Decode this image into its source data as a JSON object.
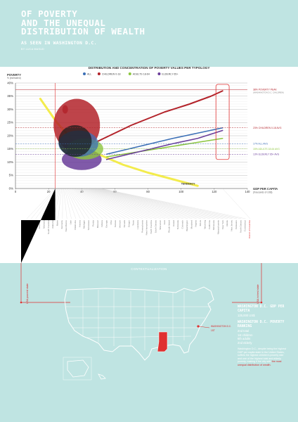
{
  "header": {
    "title": "OF POVERTY\nAND THE UNEQUAL\nDISTRIBUTION OF WEALTH",
    "subtitle": "AS SEEN IN WASHINGTON D.C.",
    "author": "BY LUCA MASUD"
  },
  "colors": {
    "band": "#bfe4e2",
    "all": "#3b6fb6",
    "children": "#b3232a",
    "adults": "#8cc63f",
    "elderly": "#6a3d9a",
    "tendency": "#f2ea3a",
    "highlight": "#e03030"
  },
  "chart_data": {
    "type": "scatter",
    "title": "DISTRIBUTION AND CONCENTRATION OF POVERTY VALUES PER TYPOLOGY",
    "ylabel": "POVERTY",
    "ylabel_sub": "% (estimated)",
    "xlabel": "GDP PER CAPITA",
    "xlabel_sub": "(thousands of US$)",
    "xlim": [
      0,
      140
    ],
    "ylim": [
      0,
      40
    ],
    "xticks": [
      0,
      20,
      40,
      60,
      80,
      100,
      120,
      140
    ],
    "yticks": [
      "0%",
      "5%",
      "10%",
      "15%",
      "20%",
      "25%",
      "30%",
      "35%",
      "40%"
    ],
    "grid": true,
    "legend_position": "top",
    "series": [
      {
        "name": "ALL",
        "color": "#3b6fb6",
        "dc_x": 125,
        "dc_y": 19
      },
      {
        "name": "CHILDREN 0-18",
        "color": "#b3232a",
        "dc_x": 125,
        "dc_y": 29
      },
      {
        "name": "ADULTS 18-64",
        "color": "#8cc63f",
        "dc_x": 125,
        "dc_y": 16
      },
      {
        "name": "ELDERLY 65+",
        "color": "#6a3d9a",
        "dc_x": 125,
        "dc_y": 14
      }
    ],
    "trend_lines": [
      {
        "series": "CHILDREN 0-18",
        "x": [
          50,
          70,
          90,
          105,
          118,
          125
        ],
        "y": [
          18,
          24,
          29,
          32,
          35,
          37
        ]
      },
      {
        "series": "ALL",
        "x": [
          55,
          75,
          95,
          110,
          125
        ],
        "y": [
          13,
          16,
          19,
          21,
          23
        ]
      },
      {
        "series": "ADULTS 18-64",
        "x": [
          55,
          75,
          95,
          110,
          125
        ],
        "y": [
          12,
          14,
          16,
          17.5,
          19
        ]
      },
      {
        "series": "ELDERLY 65+",
        "x": [
          55,
          75,
          95,
          110,
          125
        ],
        "y": [
          11,
          14,
          17,
          19,
          22
        ]
      }
    ],
    "tendency": {
      "label": "TENDENCY",
      "x": [
        15,
        25,
        35,
        50,
        65,
        80,
        95,
        110
      ],
      "y": [
        34,
        25,
        18,
        13,
        9,
        6,
        3.5,
        1
      ]
    },
    "right_annotations": [
      {
        "text": "38% POVERTY PEAK",
        "sub": "(WASHINGTON D.C. CHILDREN)",
        "y": 37.5,
        "color": "#b3232a"
      },
      {
        "text": "23% CHILDREN 0-18 AVG",
        "y": 23,
        "color": "#b3232a"
      },
      {
        "text": "17% ALL AVG",
        "y": 17,
        "color": "#3b6fb6"
      },
      {
        "text": "15% ADULTS 18-64 AVG",
        "y": 15,
        "color": "#8cc63f"
      },
      {
        "text": "13% ELDERLY 65+ AVG",
        "y": 13,
        "color": "#6a3d9a"
      }
    ]
  },
  "states": [
    "Mississippi",
    "West Virginia",
    "Idaho",
    "Arkansas",
    "Montana",
    "South Carolina",
    "Alabama",
    "Maine",
    "Kentucky",
    "New Mexico",
    "Utah",
    "Oklahoma",
    "Arizona",
    "Michigan",
    "Tennessee",
    "Florida",
    "Missouri",
    "Indiana",
    "Georgia",
    "Ohio",
    "Kansas",
    "Vermont",
    "Nevada",
    "Oregon",
    "Texas",
    "Louisiana",
    "Pennsylvania",
    "New Hampshire",
    "North Carolina",
    "South Dakota",
    "Wisconsin",
    "Iowa",
    "Rhode Island",
    "Hawaii",
    "Nebraska",
    "Colorado",
    "Washington",
    "Maryland",
    "Virginia",
    "Illinois",
    "Wyoming",
    "California",
    "Minnesota",
    "Massachusetts",
    "New York",
    "Alaska",
    "New Jersey",
    "Delaware",
    "North Dakota",
    "Connecticut",
    "District of Columbia"
  ],
  "side_labels": {
    "left_top": "Mississippi",
    "left_bottom": "USA poorest state",
    "right_top": "District of Columbia",
    "right_bottom": "USA richest state"
  },
  "context": {
    "title": "CONTEXTUALIZATION",
    "dc_label_1": "WASHINGTON D.C.",
    "dc_label_2": "1ST",
    "ms_label": "MS",
    "dc_gdp_head": "WASHINGTON D.C. GDP PER CAPITA",
    "dc_gdp_value": "125,000 US$",
    "dc_rank_head": "WASHINGTON D.C. POVERTY RANKING",
    "dc_rank_values": [
      "2nd total",
      "1st children",
      "6th adults",
      "2nd elderly"
    ],
    "dc_desc": "Washington D.C., despite being the highest GDP per capita state in the United States, suffers the highest children's poverty rate and one of the highest total and elderly poverty, making it the city with",
    "dc_desc_highlight": "the most unequal distribution of wealth."
  }
}
